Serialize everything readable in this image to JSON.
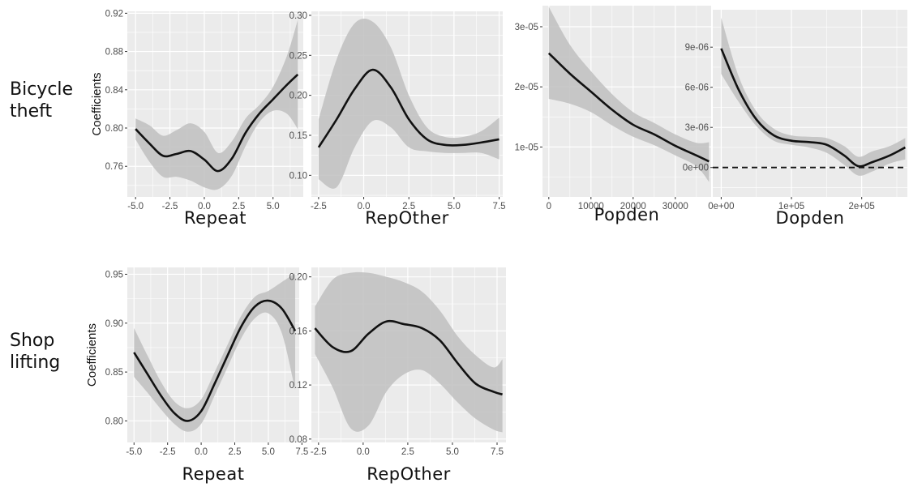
{
  "row_labels": {
    "bicycle_line1": "Bicycle",
    "bicycle_line2": "theft",
    "shop_line1": "Shop",
    "shop_line2": "lifting"
  },
  "colors": {
    "panel_bg": "#ebebeb",
    "grid": "#ffffff",
    "ribbon": "#bfbfbf",
    "line": "#111111"
  },
  "chart_data": [
    {
      "type": "line",
      "row": "Bicycle theft",
      "xlabel": "Repeat",
      "ylabel": "Coefficients",
      "xlim": [
        -5.6,
        7.2
      ],
      "ylim": [
        0.728,
        0.922
      ],
      "x_ticks": [
        -5,
        -2.5,
        0,
        2.5,
        5
      ],
      "x_tick_labels": [
        "-5.0",
        "-2.5",
        "0.0",
        "2.5",
        "5.0"
      ],
      "y_ticks": [
        0.76,
        0.8,
        0.84,
        0.88,
        0.92
      ],
      "y_tick_labels": [
        "0.76",
        "0.80",
        "0.84",
        "0.88",
        "0.92"
      ],
      "x": [
        -5,
        -4,
        -3,
        -2,
        -1,
        0,
        1,
        2,
        3,
        4,
        5,
        6,
        6.8
      ],
      "y": [
        0.799,
        0.784,
        0.771,
        0.773,
        0.776,
        0.767,
        0.755,
        0.768,
        0.795,
        0.815,
        0.83,
        0.845,
        0.856
      ],
      "lower": [
        0.788,
        0.765,
        0.749,
        0.749,
        0.745,
        0.738,
        0.736,
        0.75,
        0.781,
        0.806,
        0.818,
        0.815,
        0.799
      ],
      "upper": [
        0.81,
        0.803,
        0.792,
        0.798,
        0.805,
        0.796,
        0.774,
        0.786,
        0.81,
        0.824,
        0.843,
        0.875,
        0.913
      ]
    },
    {
      "type": "line",
      "row": "Bicycle theft",
      "xlabel": "RepOther",
      "xlim": [
        -2.9,
        7.7
      ],
      "ylim": [
        0.073,
        0.305
      ],
      "x_ticks": [
        -2.5,
        0,
        2.5,
        5,
        7.5
      ],
      "x_tick_labels": [
        "-2.5",
        "0.0",
        "2.5",
        "5.0",
        "7.5"
      ],
      "y_ticks": [
        0.1,
        0.15,
        0.2,
        0.25,
        0.3
      ],
      "y_tick_labels": [
        "0.10",
        "0.15",
        "0.20",
        "0.25",
        "0.30"
      ],
      "x": [
        -2.5,
        -1.5,
        -0.5,
        0.5,
        1.5,
        2.5,
        3.5,
        4.5,
        5.5,
        6.5,
        7.5
      ],
      "y": [
        0.135,
        0.17,
        0.208,
        0.232,
        0.21,
        0.17,
        0.145,
        0.138,
        0.138,
        0.141,
        0.145
      ],
      "lower": [
        0.095,
        0.085,
        0.135,
        0.168,
        0.16,
        0.135,
        0.13,
        0.128,
        0.128,
        0.128,
        0.12
      ],
      "upper": [
        0.17,
        0.245,
        0.29,
        0.292,
        0.26,
        0.2,
        0.16,
        0.148,
        0.148,
        0.155,
        0.172
      ]
    },
    {
      "type": "line",
      "row": "Bicycle theft",
      "xlabel": "Popden",
      "xlim": [
        -1500,
        38500
      ],
      "ylim": [
        1.7e-06,
        3.35e-05
      ],
      "x_ticks": [
        0,
        10000,
        20000,
        30000
      ],
      "x_tick_labels": [
        "0",
        "10000",
        "20000",
        "30000"
      ],
      "y_ticks": [
        1e-05,
        2e-05,
        3e-05
      ],
      "y_tick_labels": [
        "1e-05",
        "2e-05",
        "3e-05"
      ],
      "x": [
        0,
        5000,
        10000,
        15000,
        20000,
        25000,
        30000,
        35000,
        38000
      ],
      "y": [
        2.56e-05,
        2.22e-05,
        1.92e-05,
        1.62e-05,
        1.37e-05,
        1.21e-05,
        1.02e-05,
        8.6e-06,
        7.6e-06
      ],
      "lower": [
        1.8e-05,
        1.72e-05,
        1.58e-05,
        1.36e-05,
        1.17e-05,
        1.03e-05,
        8.6e-06,
        6.8e-06,
        4.2e-06
      ],
      "upper": [
        3.33e-05,
        2.7e-05,
        2.26e-05,
        1.88e-05,
        1.58e-05,
        1.4e-05,
        1.21e-05,
        1.07e-05,
        1.08e-05
      ]
    },
    {
      "type": "line",
      "row": "Bicycle theft",
      "xlabel": "Dopden",
      "xlim": [
        -12000,
        265000
      ],
      "ylim": [
        -2.2e-06,
        1.18e-05
      ],
      "x_ticks": [
        0,
        100000,
        200000
      ],
      "x_tick_labels": [
        "0e+00",
        "1e+05",
        "2e+05"
      ],
      "y_ticks": [
        0,
        3e-06,
        6e-06,
        9e-06
      ],
      "y_tick_labels": [
        "0e+00",
        "3e-06",
        "6e-06",
        "9e-06"
      ],
      "hline": 0,
      "x": [
        0,
        25000,
        50000,
        75000,
        100000,
        125000,
        150000,
        175000,
        195000,
        215000,
        240000,
        262000
      ],
      "y": [
        8.9e-06,
        5.8e-06,
        3.6e-06,
        2.4e-06,
        2e-06,
        1.9e-06,
        1.7e-06,
        9e-07,
        1e-07,
        4e-07,
        9e-07,
        1.5e-06
      ],
      "lower": [
        7e-06,
        4.9e-06,
        3.1e-06,
        2e-06,
        1.7e-06,
        1.5e-06,
        1.1e-06,
        2e-07,
        -6e-07,
        -3e-07,
        3e-07,
        6e-07
      ],
      "upper": [
        1.12e-05,
        6.8e-06,
        4.2e-06,
        2.9e-06,
        2.4e-06,
        2.3e-06,
        2.2e-06,
        1.6e-06,
        8e-07,
        1.2e-06,
        1.6e-06,
        2.2e-06
      ]
    },
    {
      "type": "line",
      "row": "Shop lifting",
      "xlabel": "Repeat",
      "ylabel": "Coefficients",
      "xlim": [
        -5.5,
        7.3
      ],
      "ylim": [
        0.778,
        0.957
      ],
      "x_ticks": [
        -5,
        -2.5,
        0,
        2.5,
        5,
        7.5
      ],
      "x_tick_labels": [
        "-5.0",
        "-2.5",
        "0.0",
        "2.5",
        "5.0",
        "7.5"
      ],
      "y_ticks": [
        0.8,
        0.85,
        0.9,
        0.95
      ],
      "y_tick_labels": [
        "0.80",
        "0.85",
        "0.90",
        "0.95"
      ],
      "x": [
        -5,
        -4,
        -3,
        -2,
        -1,
        0,
        1,
        2,
        3,
        4,
        5,
        6,
        7
      ],
      "y": [
        0.87,
        0.848,
        0.826,
        0.808,
        0.8,
        0.81,
        0.838,
        0.868,
        0.897,
        0.917,
        0.923,
        0.915,
        0.892
      ],
      "lower": [
        0.845,
        0.829,
        0.812,
        0.797,
        0.789,
        0.797,
        0.826,
        0.856,
        0.885,
        0.905,
        0.91,
        0.89,
        0.832
      ],
      "upper": [
        0.895,
        0.867,
        0.84,
        0.82,
        0.813,
        0.822,
        0.85,
        0.879,
        0.908,
        0.927,
        0.933,
        0.942,
        0.951
      ]
    },
    {
      "type": "line",
      "row": "Shop lifting",
      "xlabel": "RepOther",
      "xlim": [
        -2.9,
        8.0
      ],
      "ylim": [
        0.0775,
        0.207
      ],
      "x_ticks": [
        -2.5,
        0,
        2.5,
        5,
        7.5
      ],
      "x_tick_labels": [
        "-2.5",
        "0.0",
        "2.5",
        "5.0",
        "7.5"
      ],
      "y_ticks": [
        0.08,
        0.12,
        0.16,
        0.2
      ],
      "y_tick_labels": [
        "0.08",
        "0.12",
        "0.16",
        "0.20"
      ],
      "x": [
        -2.7,
        -1.7,
        -0.7,
        0.3,
        1.3,
        2.3,
        3.3,
        4.3,
        5.3,
        6.3,
        7.3,
        7.8
      ],
      "y": [
        0.162,
        0.148,
        0.145,
        0.158,
        0.167,
        0.165,
        0.162,
        0.153,
        0.136,
        0.121,
        0.115,
        0.113
      ],
      "lower": [
        0.143,
        0.118,
        0.088,
        0.09,
        0.115,
        0.128,
        0.131,
        0.121,
        0.107,
        0.095,
        0.087,
        0.085
      ],
      "upper": [
        0.178,
        0.198,
        0.203,
        0.203,
        0.2,
        0.196,
        0.189,
        0.175,
        0.156,
        0.142,
        0.133,
        0.139
      ]
    }
  ]
}
